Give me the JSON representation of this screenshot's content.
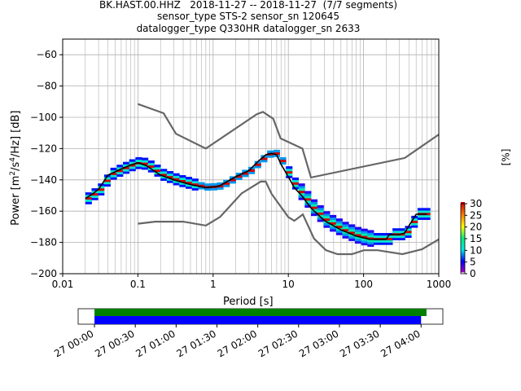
{
  "header": {
    "title_line1": "BK.HAST.00.HHZ   2018-11-27 -- 2018-11-27  (7/7 segments)",
    "title_line2": "sensor_type STS-2 sensor_sn 120645",
    "title_line3": "datalogger_type Q330HR datalogger_sn 2633"
  },
  "chart_data": [
    {
      "type": "heatmap",
      "subtype": "ppsd",
      "xlabel": "Period [s]",
      "ylabel_parts": {
        "pre": "Power [m",
        "exp1": "2",
        "mid": "/s",
        "exp2": "4",
        "post": "/Hz] [dB]"
      },
      "xscale": "log",
      "xlim": [
        0.01,
        1000
      ],
      "ylim": [
        -200,
        -50
      ],
      "xticks": [
        0.01,
        0.1,
        1,
        10,
        100,
        1000
      ],
      "xtick_labels": [
        "0.01",
        "0.1",
        "1",
        "10",
        "100",
        "1000"
      ],
      "yticks": [
        -200,
        -180,
        -160,
        -140,
        -120,
        -100,
        -80,
        -60
      ],
      "ytick_labels": [
        "−200",
        "−180",
        "−160",
        "−140",
        "−120",
        "−100",
        "−80",
        "−60"
      ],
      "grid": true,
      "noise_model_high": {
        "x": [
          0.1,
          0.22,
          0.32,
          0.8,
          3.8,
          4.6,
          6.3,
          7.9,
          15.4,
          20,
          354,
          1000
        ],
        "y": [
          -91.5,
          -97.4,
          -110.5,
          -120,
          -98,
          -96.5,
          -101,
          -113.5,
          -120,
          -138.5,
          -126,
          -111
        ]
      },
      "noise_model_low": {
        "x": [
          0.1,
          0.17,
          0.4,
          0.8,
          1.24,
          2.4,
          4.3,
          5,
          6,
          10,
          12,
          15.6,
          21.9,
          31.6,
          45,
          70,
          101,
          154,
          328,
          600,
          1000
        ],
        "y": [
          -168,
          -166.7,
          -166.7,
          -169.2,
          -163.7,
          -148.6,
          -141.1,
          -141.1,
          -149,
          -163.8,
          -166.2,
          -162.1,
          -177.5,
          -185,
          -187.5,
          -187.5,
          -185,
          -185,
          -187.5,
          -184.4,
          -178
        ]
      },
      "mean_curve": {
        "x": [
          0.02,
          0.025,
          0.03,
          0.04,
          0.06,
          0.08,
          0.1,
          0.13,
          0.2,
          0.3,
          0.5,
          0.8,
          1.2,
          2,
          3,
          4,
          5,
          6,
          7,
          8,
          10,
          12,
          15,
          20,
          30,
          50,
          80,
          120,
          200,
          220,
          300,
          350,
          500,
          700
        ],
        "y": [
          -152,
          -149,
          -146,
          -137,
          -133,
          -130.5,
          -129,
          -131,
          -137,
          -140,
          -143,
          -145,
          -144,
          -138,
          -134,
          -128,
          -124,
          -123,
          -124,
          -130,
          -138,
          -145,
          -150,
          -158,
          -166,
          -172,
          -176,
          -178,
          -178,
          -175,
          -175,
          -174,
          -162,
          -162
        ]
      },
      "colorbar": {
        "label": "[%]",
        "min": 0,
        "max": 30,
        "ticks": [
          0,
          5,
          10,
          15,
          20,
          25,
          30
        ],
        "tick_labels": [
          "0",
          "5",
          "10",
          "15",
          "20",
          "25",
          "30"
        ]
      }
    },
    {
      "type": "timeline",
      "tick_labels": [
        "27 00:00",
        "27 00:30",
        "27 01:00",
        "27 01:30",
        "27 02:00",
        "27 02:30",
        "27 03:00",
        "27 03:30",
        "27 04:00"
      ],
      "xlim_minutes": [
        -12,
        256
      ],
      "green_bar_minutes": [
        0,
        244
      ],
      "blue_bar_minutes": [
        0,
        240
      ],
      "green_color": "#008000",
      "blue_color": "#0000ff"
    }
  ]
}
